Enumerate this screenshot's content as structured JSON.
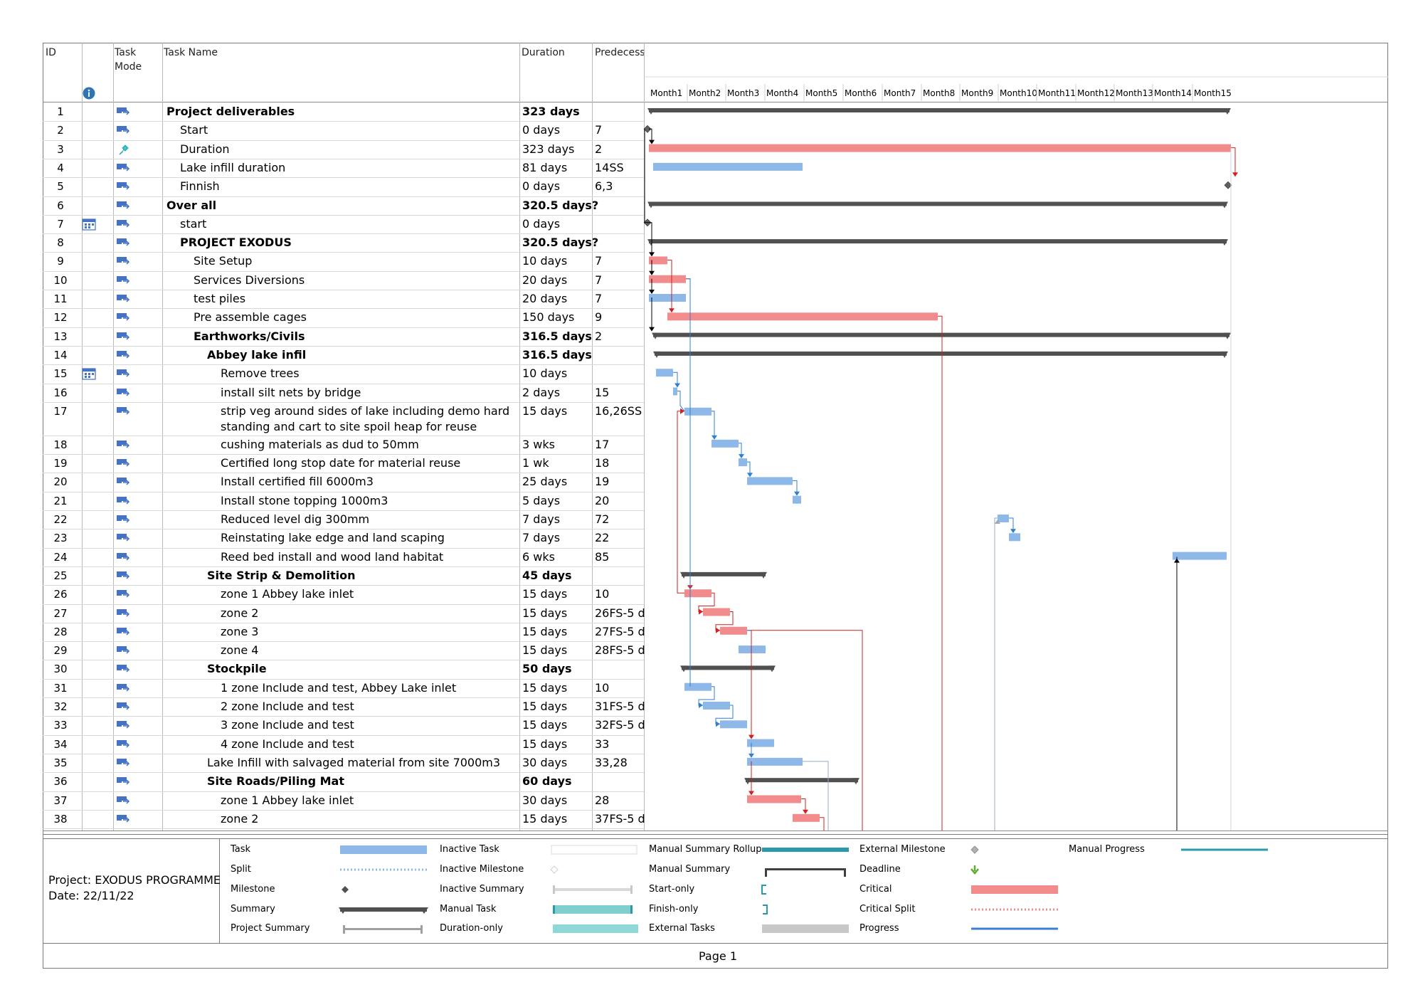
{
  "columns": {
    "id": "ID",
    "mode_line1": "Task",
    "mode_line2": "Mode",
    "name": "Task Name",
    "duration": "Duration",
    "predecessors": "Predecess"
  },
  "timescale": [
    "Month1",
    "Month2",
    "Month3",
    "Month4",
    "Month5",
    "Month6",
    "Month7",
    "Month8",
    "Month9",
    "Month10",
    "Month11",
    "Month12",
    "Month13",
    "Month14",
    "Month15"
  ],
  "rows": [
    {
      "id": "1",
      "name": "Project deliverables",
      "duration": "323 days",
      "pred": "",
      "bold": true,
      "indent": 0,
      "mode": "auto"
    },
    {
      "id": "2",
      "name": "Start",
      "duration": "0 days",
      "pred": "7",
      "bold": false,
      "indent": 1,
      "mode": "auto"
    },
    {
      "id": "3",
      "name": "Duration",
      "duration": "323 days",
      "pred": "2",
      "bold": false,
      "indent": 1,
      "mode": "manual"
    },
    {
      "id": "4",
      "name": "Lake infill duration",
      "duration": "81 days",
      "pred": "14SS",
      "bold": false,
      "indent": 1,
      "mode": "auto"
    },
    {
      "id": "5",
      "name": "Finnish",
      "duration": "0 days",
      "pred": "6,3",
      "bold": false,
      "indent": 1,
      "mode": "auto"
    },
    {
      "id": "6",
      "name": "Over all",
      "duration": "320.5 days?",
      "pred": "",
      "bold": true,
      "indent": 0,
      "mode": "auto"
    },
    {
      "id": "7",
      "name": "start",
      "duration": "0 days",
      "pred": "",
      "bold": false,
      "indent": 1,
      "mode": "auto",
      "calendar": true
    },
    {
      "id": "8",
      "name": "PROJECT EXODUS",
      "duration": "320.5 days?",
      "pred": "",
      "bold": true,
      "indent": 1,
      "mode": "auto"
    },
    {
      "id": "9",
      "name": "Site Setup",
      "duration": "10 days",
      "pred": "7",
      "bold": false,
      "indent": 2,
      "mode": "auto"
    },
    {
      "id": "10",
      "name": "Services Diversions",
      "duration": "20 days",
      "pred": "7",
      "bold": false,
      "indent": 2,
      "mode": "auto"
    },
    {
      "id": "11",
      "name": "test piles",
      "duration": "20 days",
      "pred": "7",
      "bold": false,
      "indent": 2,
      "mode": "auto"
    },
    {
      "id": "12",
      "name": "Pre assemble cages",
      "duration": "150 days",
      "pred": "9",
      "bold": false,
      "indent": 2,
      "mode": "auto"
    },
    {
      "id": "13",
      "name": "Earthworks/Civils",
      "duration": "316.5 days",
      "pred": "2",
      "bold": true,
      "indent": 2,
      "mode": "auto"
    },
    {
      "id": "14",
      "name": "Abbey lake infil",
      "duration": "316.5 days",
      "pred": "",
      "bold": true,
      "indent": 3,
      "mode": "auto"
    },
    {
      "id": "15",
      "name": "Remove trees",
      "duration": "10 days",
      "pred": "",
      "bold": false,
      "indent": 4,
      "mode": "auto",
      "calendar": true
    },
    {
      "id": "16",
      "name": "install silt nets by bridge",
      "duration": "2 days",
      "pred": "15",
      "bold": false,
      "indent": 4,
      "mode": "auto"
    },
    {
      "id": "17",
      "name": "strip veg around sides of lake including demo  hard",
      "name2": "standing and cart to site spoil heap for reuse",
      "duration": "15 days",
      "pred": "16,26SS",
      "bold": false,
      "indent": 4,
      "mode": "auto"
    },
    {
      "id": "18",
      "name": "cushing materials as dud to 50mm",
      "duration": "3 wks",
      "pred": "17",
      "bold": false,
      "indent": 4,
      "mode": "auto"
    },
    {
      "id": "19",
      "name": "Certified long stop date for material reuse",
      "duration": "1 wk",
      "pred": "18",
      "bold": false,
      "indent": 4,
      "mode": "auto"
    },
    {
      "id": "20",
      "name": "Install certified fill 6000m3",
      "duration": "25 days",
      "pred": "19",
      "bold": false,
      "indent": 4,
      "mode": "auto"
    },
    {
      "id": "21",
      "name": "Install stone topping 1000m3",
      "duration": "5 days",
      "pred": "20",
      "bold": false,
      "indent": 4,
      "mode": "auto"
    },
    {
      "id": "22",
      "name": "Reduced level dig 300mm",
      "duration": "7 days",
      "pred": "72",
      "bold": false,
      "indent": 4,
      "mode": "auto"
    },
    {
      "id": "23",
      "name": "Reinstating lake edge and land scaping",
      "duration": "7 days",
      "pred": "22",
      "bold": false,
      "indent": 4,
      "mode": "auto"
    },
    {
      "id": "24",
      "name": "Reed bed install and wood land habitat",
      "duration": "6 wks",
      "pred": "85",
      "bold": false,
      "indent": 4,
      "mode": "auto"
    },
    {
      "id": "25",
      "name": "Site Strip & Demolition",
      "duration": "45 days",
      "pred": "",
      "bold": true,
      "indent": 3,
      "mode": "auto"
    },
    {
      "id": "26",
      "name": "zone 1 Abbey lake inlet",
      "duration": "15 days",
      "pred": "10",
      "bold": false,
      "indent": 4,
      "mode": "auto"
    },
    {
      "id": "27",
      "name": "zone 2",
      "duration": "15 days",
      "pred": "26FS-5 d",
      "bold": false,
      "indent": 4,
      "mode": "auto"
    },
    {
      "id": "28",
      "name": "zone 3",
      "duration": "15 days",
      "pred": "27FS-5 d",
      "bold": false,
      "indent": 4,
      "mode": "auto"
    },
    {
      "id": "29",
      "name": "zone 4",
      "duration": "15 days",
      "pred": "28FS-5 d",
      "bold": false,
      "indent": 4,
      "mode": "auto"
    },
    {
      "id": "30",
      "name": "Stockpile",
      "duration": "50 days",
      "pred": "",
      "bold": true,
      "indent": 3,
      "mode": "auto"
    },
    {
      "id": "31",
      "name": "1 zone Include and test, Abbey Lake inlet",
      "duration": "15 days",
      "pred": "10",
      "bold": false,
      "indent": 4,
      "mode": "auto"
    },
    {
      "id": "32",
      "name": "2 zone Include and test",
      "duration": "15 days",
      "pred": "31FS-5 d",
      "bold": false,
      "indent": 4,
      "mode": "auto"
    },
    {
      "id": "33",
      "name": "3 zone Include and test",
      "duration": "15 days",
      "pred": "32FS-5 d",
      "bold": false,
      "indent": 4,
      "mode": "auto"
    },
    {
      "id": "34",
      "name": "4  zone Include and test",
      "duration": "15 days",
      "pred": "33",
      "bold": false,
      "indent": 4,
      "mode": "auto"
    },
    {
      "id": "35",
      "name": "Lake Infill with salvaged material from site 7000m3",
      "duration": "30 days",
      "pred": "33,28",
      "bold": false,
      "indent": 3,
      "mode": "auto"
    },
    {
      "id": "36",
      "name": "Site Roads/Piling Mat",
      "duration": "60 days",
      "pred": "",
      "bold": true,
      "indent": 3,
      "mode": "auto"
    },
    {
      "id": "37",
      "name": "zone 1 Abbey lake inlet",
      "duration": "30 days",
      "pred": "28",
      "bold": false,
      "indent": 4,
      "mode": "auto"
    },
    {
      "id": "38",
      "name": "zone 2",
      "duration": "15 days",
      "pred": "37FS-5 d",
      "bold": false,
      "indent": 4,
      "mode": "auto"
    }
  ],
  "legend": {
    "col1": [
      "Task",
      "Split",
      "Milestone",
      "Summary",
      "Project Summary"
    ],
    "col2": [
      "Inactive Task",
      "Inactive Milestone",
      "Inactive Summary",
      "Manual Task",
      "Duration-only"
    ],
    "col3": [
      "Manual Summary Rollup",
      "Manual Summary",
      "Start-only",
      "Finish-only",
      "External Tasks"
    ],
    "col4": [
      "External Milestone",
      "Deadline",
      "Critical",
      "Critical Split",
      "Progress"
    ],
    "col5": [
      "Manual Progress"
    ]
  },
  "footer": {
    "project": "Project: EXODUS PROGRAMME",
    "date": "Date: 22/11/22",
    "page": "Page 1"
  },
  "colors": {
    "task": "#8db8e8",
    "critical": "#f28b8b",
    "summary": "#505050",
    "link_blue": "#2f7fd0",
    "link_red": "#d02020",
    "manual_task": "#7fcfcf",
    "manual_progress": "#2a9aa8"
  }
}
